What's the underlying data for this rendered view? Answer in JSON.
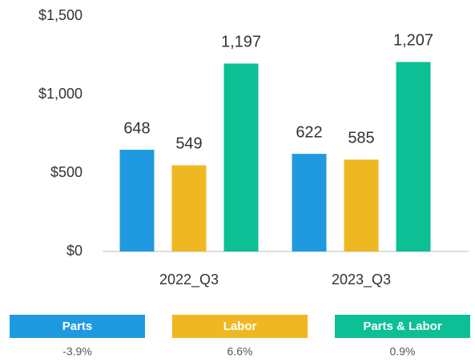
{
  "chart_data": {
    "type": "bar",
    "categories": [
      "2022_Q3",
      "2023_Q3"
    ],
    "series": [
      {
        "name": "Parts",
        "color": "#1f9ae0",
        "values": [
          648,
          622
        ],
        "change": "-3.9%"
      },
      {
        "name": "Labor",
        "color": "#efb822",
        "values": [
          549,
          585
        ],
        "change": "6.6%"
      },
      {
        "name": "Parts & Labor",
        "color": "#0cbf94",
        "values": [
          1197,
          1207
        ],
        "value_labels": [
          "1,197",
          "1,207"
        ],
        "change": "0.9%"
      }
    ],
    "ylim": [
      0,
      1500
    ],
    "yticks": [
      {
        "value": 0,
        "label": "$0"
      },
      {
        "value": 500,
        "label": "$500"
      },
      {
        "value": 1000,
        "label": "$1,000"
      },
      {
        "value": 1500,
        "label": "$1,500"
      }
    ],
    "grid": false
  }
}
